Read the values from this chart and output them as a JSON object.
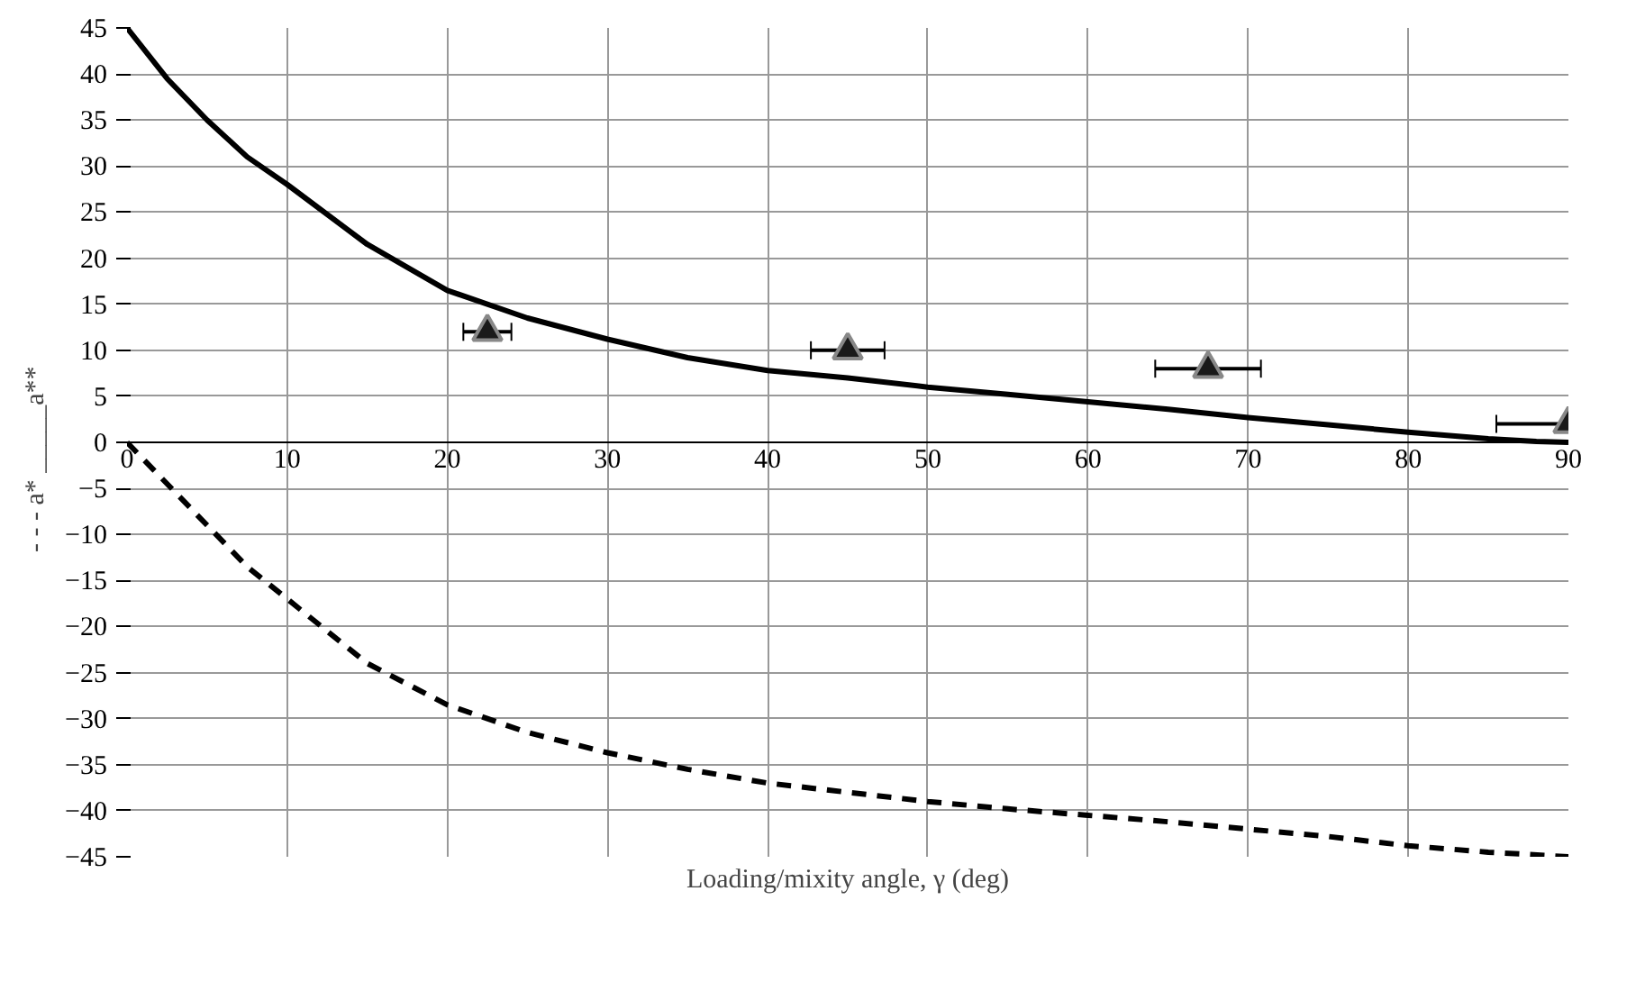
{
  "chart_data": {
    "type": "line",
    "xlabel": "Loading/mixity angle, γ (deg)",
    "ylabel": "- - - a*      _____a**",
    "xlim": [
      0,
      90
    ],
    "xticks": [
      0,
      10,
      20,
      30,
      40,
      50,
      60,
      70,
      80,
      90
    ],
    "ylim": [
      -45,
      45
    ],
    "yticks": [
      -45,
      -40,
      -35,
      -30,
      -25,
      -20,
      -15,
      -10,
      -5,
      0,
      5,
      10,
      15,
      20,
      25,
      30,
      35,
      40,
      45
    ],
    "grid": true,
    "series": [
      {
        "line_style": "solid",
        "color": "#000000",
        "x": [
          0,
          2.5,
          5,
          7.5,
          10,
          15,
          20,
          25,
          30,
          35,
          40,
          45,
          50,
          55,
          60,
          65,
          70,
          75,
          80,
          85,
          88,
          90
        ],
        "values": [
          45,
          39.5,
          35,
          31,
          28,
          21.5,
          16.5,
          13.5,
          11.2,
          9.2,
          7.8,
          7,
          6,
          5.2,
          4.4,
          3.6,
          2.7,
          1.9,
          1.1,
          0.4,
          0.1,
          0
        ]
      },
      {
        "line_style": "dashed",
        "color": "#000000",
        "x": [
          0,
          2.5,
          5,
          7.5,
          10,
          15,
          20,
          25,
          30,
          35,
          40,
          45,
          50,
          55,
          60,
          65,
          70,
          75,
          80,
          85,
          90
        ],
        "values": [
          0,
          -4.5,
          -9,
          -13.5,
          -17,
          -24,
          -28.5,
          -31.5,
          -33.7,
          -35.5,
          -37,
          -38,
          -39,
          -39.8,
          -40.5,
          -41.2,
          -42,
          -42.8,
          -43.8,
          -44.5,
          -45
        ]
      },
      {
        "type": "scatter",
        "marker": "triangle",
        "color": "#1a1a1a",
        "x": [
          22.5,
          45,
          67.5,
          90
        ],
        "values": [
          12,
          10,
          8,
          2
        ],
        "xerrors": [
          1.5,
          2.3,
          3.3,
          [
            85.5,
            90
          ]
        ]
      }
    ]
  }
}
